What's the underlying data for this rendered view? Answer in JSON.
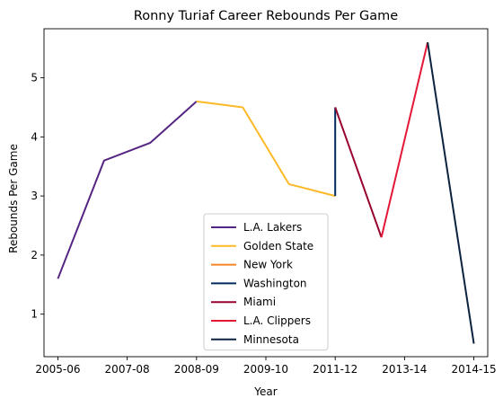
{
  "chart_data": {
    "type": "line",
    "title": "Ronny Turiaf Career Rebounds Per Game",
    "xlabel": "Year",
    "ylabel": "Rebounds Per Game",
    "x_tick_labels": [
      "2005-06",
      "2007-08",
      "2008-09",
      "2009-10",
      "2011-12",
      "2013-14",
      "2014-15"
    ],
    "y_ticks": [
      1,
      2,
      3,
      4,
      5
    ],
    "xlim": [
      -0.3,
      9.3
    ],
    "ylim": [
      0.28,
      5.83
    ],
    "grid": false,
    "legend_position": "lower center",
    "series": [
      {
        "name": "L.A. Lakers",
        "color": "#552583",
        "x": [
          0,
          1,
          2,
          3
        ],
        "y": [
          1.6,
          3.6,
          3.9,
          4.6
        ]
      },
      {
        "name": "Golden State",
        "color": "#FDB927",
        "x": [
          3,
          4,
          5,
          6
        ],
        "y": [
          4.6,
          4.5,
          3.2,
          3.0
        ]
      },
      {
        "name": "New York",
        "color": "#F58426",
        "x": [
          6
        ],
        "y": [
          3.0
        ]
      },
      {
        "name": "Washington",
        "color": "#002B5C",
        "x": [
          6,
          6
        ],
        "y": [
          3.0,
          4.5
        ]
      },
      {
        "name": "Miami",
        "color": "#98002E",
        "x": [
          6,
          7
        ],
        "y": [
          4.5,
          2.3
        ]
      },
      {
        "name": "L.A. Clippers",
        "color": "#E31837",
        "x": [
          7,
          8
        ],
        "y": [
          2.3,
          5.6
        ]
      },
      {
        "name": "Minnesota",
        "color": "#0C2340",
        "x": [
          8,
          9
        ],
        "y": [
          5.6,
          0.5
        ]
      }
    ]
  }
}
